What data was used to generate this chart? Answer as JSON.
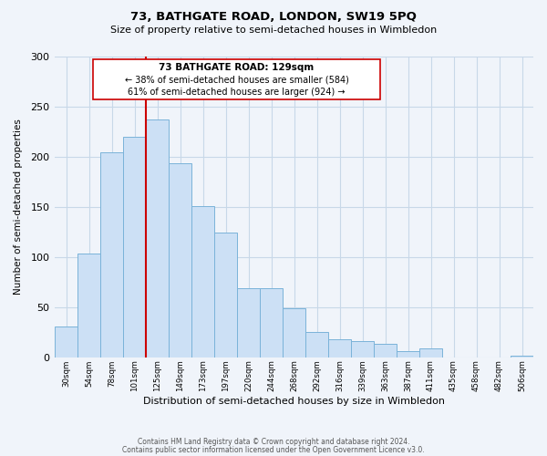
{
  "title": "73, BATHGATE ROAD, LONDON, SW19 5PQ",
  "subtitle": "Size of property relative to semi-detached houses in Wimbledon",
  "xlabel": "Distribution of semi-detached houses by size in Wimbledon",
  "ylabel": "Number of semi-detached properties",
  "bin_labels": [
    "30sqm",
    "54sqm",
    "78sqm",
    "101sqm",
    "125sqm",
    "149sqm",
    "173sqm",
    "197sqm",
    "220sqm",
    "244sqm",
    "268sqm",
    "292sqm",
    "316sqm",
    "339sqm",
    "363sqm",
    "387sqm",
    "411sqm",
    "435sqm",
    "458sqm",
    "482sqm",
    "506sqm"
  ],
  "bar_heights": [
    31,
    103,
    204,
    220,
    237,
    193,
    151,
    124,
    69,
    69,
    49,
    25,
    18,
    16,
    13,
    6,
    9,
    0,
    0,
    0,
    2
  ],
  "bar_color": "#cce0f5",
  "bar_edge_color": "#7ab3d9",
  "vline_x": 4,
  "vline_color": "#cc0000",
  "annotation_title": "73 BATHGATE ROAD: 129sqm",
  "annotation_line1": "← 38% of semi-detached houses are smaller (584)",
  "annotation_line2": "61% of semi-detached houses are larger (924) →",
  "ylim": [
    0,
    300
  ],
  "yticks": [
    0,
    50,
    100,
    150,
    200,
    250,
    300
  ],
  "footer1": "Contains HM Land Registry data © Crown copyright and database right 2024.",
  "footer2": "Contains public sector information licensed under the Open Government Licence v3.0.",
  "bg_color": "#f0f4fa",
  "grid_color": "#c8d8e8",
  "ann_box_facecolor": "white",
  "ann_box_edgecolor": "#cc0000"
}
